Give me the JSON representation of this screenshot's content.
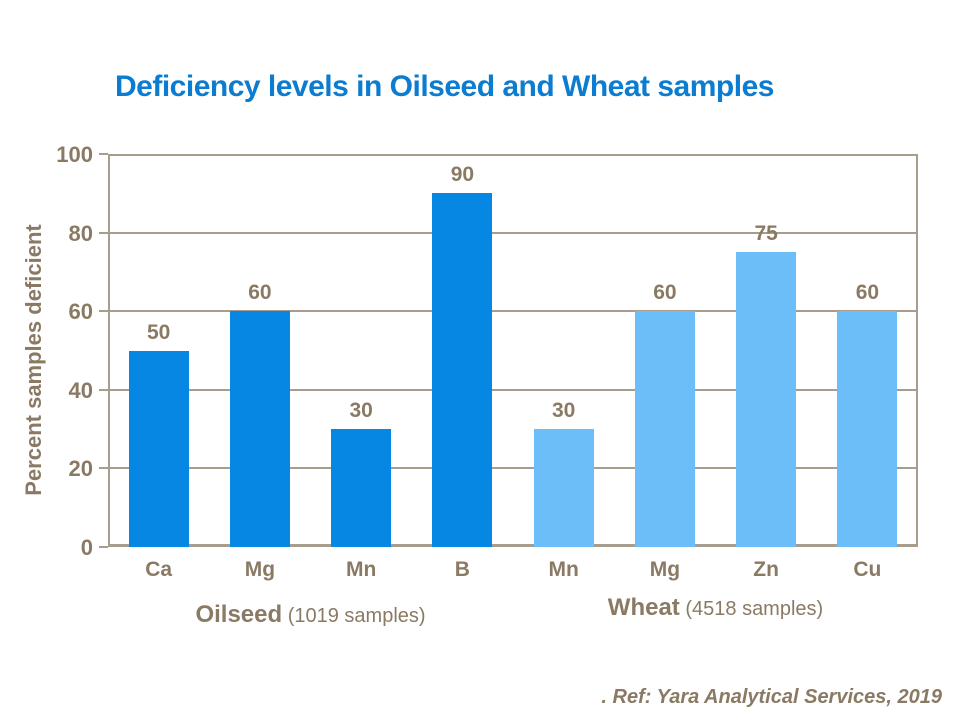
{
  "title": {
    "text": "Deficiency levels in Oilseed and Wheat samples",
    "color": "#0b7ccf"
  },
  "footer": {
    "ref": ". Ref: Yara Analytical Services, 2019"
  },
  "chart_data": {
    "type": "bar",
    "title": "Deficiency levels in Oilseed and Wheat samples",
    "xlabel": "",
    "ylabel": "Percent samples deficient",
    "ylim": [
      0,
      100
    ],
    "yticks": [
      0,
      20,
      40,
      60,
      80,
      100
    ],
    "grid": true,
    "legend": "none",
    "text_color": "#8a7a64",
    "axis_color": "#a79d8f",
    "groups": [
      {
        "name": "Oilseed",
        "note": "(1019 samples)",
        "color": "#0787e4",
        "categories": [
          "Ca",
          "Mg",
          "Mn",
          "B"
        ],
        "values": [
          50,
          60,
          30,
          90
        ]
      },
      {
        "name": "Wheat",
        "note": "(4518 samples)",
        "color": "#6cbef9",
        "categories": [
          "Mn",
          "Mg",
          "Zn",
          "Cu"
        ],
        "values": [
          30,
          60,
          75,
          60
        ]
      }
    ]
  }
}
